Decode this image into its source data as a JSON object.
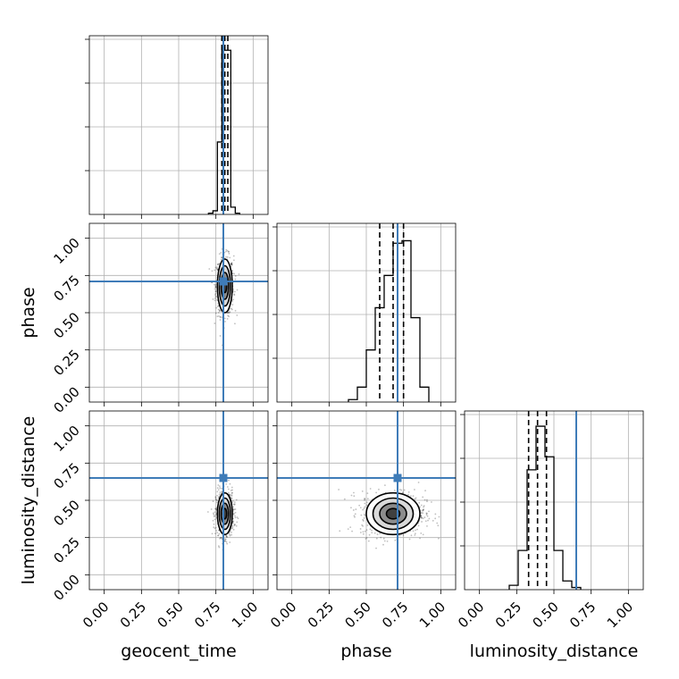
{
  "chart_data": {
    "type": "corner",
    "parameters": [
      "geocent_time",
      "phase",
      "luminosity_distance"
    ],
    "ticks": [
      0.0,
      0.25,
      0.5,
      0.75,
      1.0
    ],
    "tick_labels": [
      "0.00",
      "0.25",
      "0.50",
      "0.75",
      "1.00"
    ],
    "limits": [
      -0.1,
      1.1
    ],
    "grid": true,
    "truth_color": "#3f7cb8",
    "truths": {
      "geocent_time": 0.8,
      "phase": 0.71,
      "luminosity_distance": 0.65
    },
    "marginals": [
      {
        "parameter": "geocent_time",
        "bin_edges": [
          0.7,
          0.73,
          0.76,
          0.79,
          0.82,
          0.85,
          0.88,
          0.91
        ],
        "counts": [
          0.5,
          1.5,
          30,
          68,
          68,
          3,
          0.5
        ],
        "ymax": 74,
        "quantiles": [
          0.79,
          0.81,
          0.83
        ]
      },
      {
        "parameter": "phase",
        "bin_edges": [
          0.38,
          0.44,
          0.5,
          0.56,
          0.62,
          0.68,
          0.74,
          0.8,
          0.86,
          0.92
        ],
        "counts": [
          1,
          6,
          21,
          38,
          51,
          64,
          65,
          34,
          6
        ],
        "ymax": 72,
        "quantiles": [
          0.59,
          0.68,
          0.75
        ]
      },
      {
        "parameter": "luminosity_distance",
        "bin_edges": [
          0.2,
          0.26,
          0.32,
          0.38,
          0.44,
          0.5,
          0.56,
          0.62,
          0.68
        ],
        "counts": [
          2,
          18,
          55,
          75,
          61,
          18,
          4,
          1
        ],
        "ymax": 82,
        "quantiles": [
          0.33,
          0.39,
          0.45
        ]
      }
    ],
    "pairs": [
      {
        "x": "geocent_time",
        "y": "phase",
        "center": [
          0.81,
          0.68
        ],
        "spread": [
          0.025,
          0.09
        ]
      },
      {
        "x": "geocent_time",
        "y": "luminosity_distance",
        "center": [
          0.81,
          0.41
        ],
        "spread": [
          0.025,
          0.07
        ]
      },
      {
        "x": "phase",
        "y": "luminosity_distance",
        "center": [
          0.68,
          0.41
        ],
        "spread": [
          0.09,
          0.07
        ]
      }
    ]
  }
}
